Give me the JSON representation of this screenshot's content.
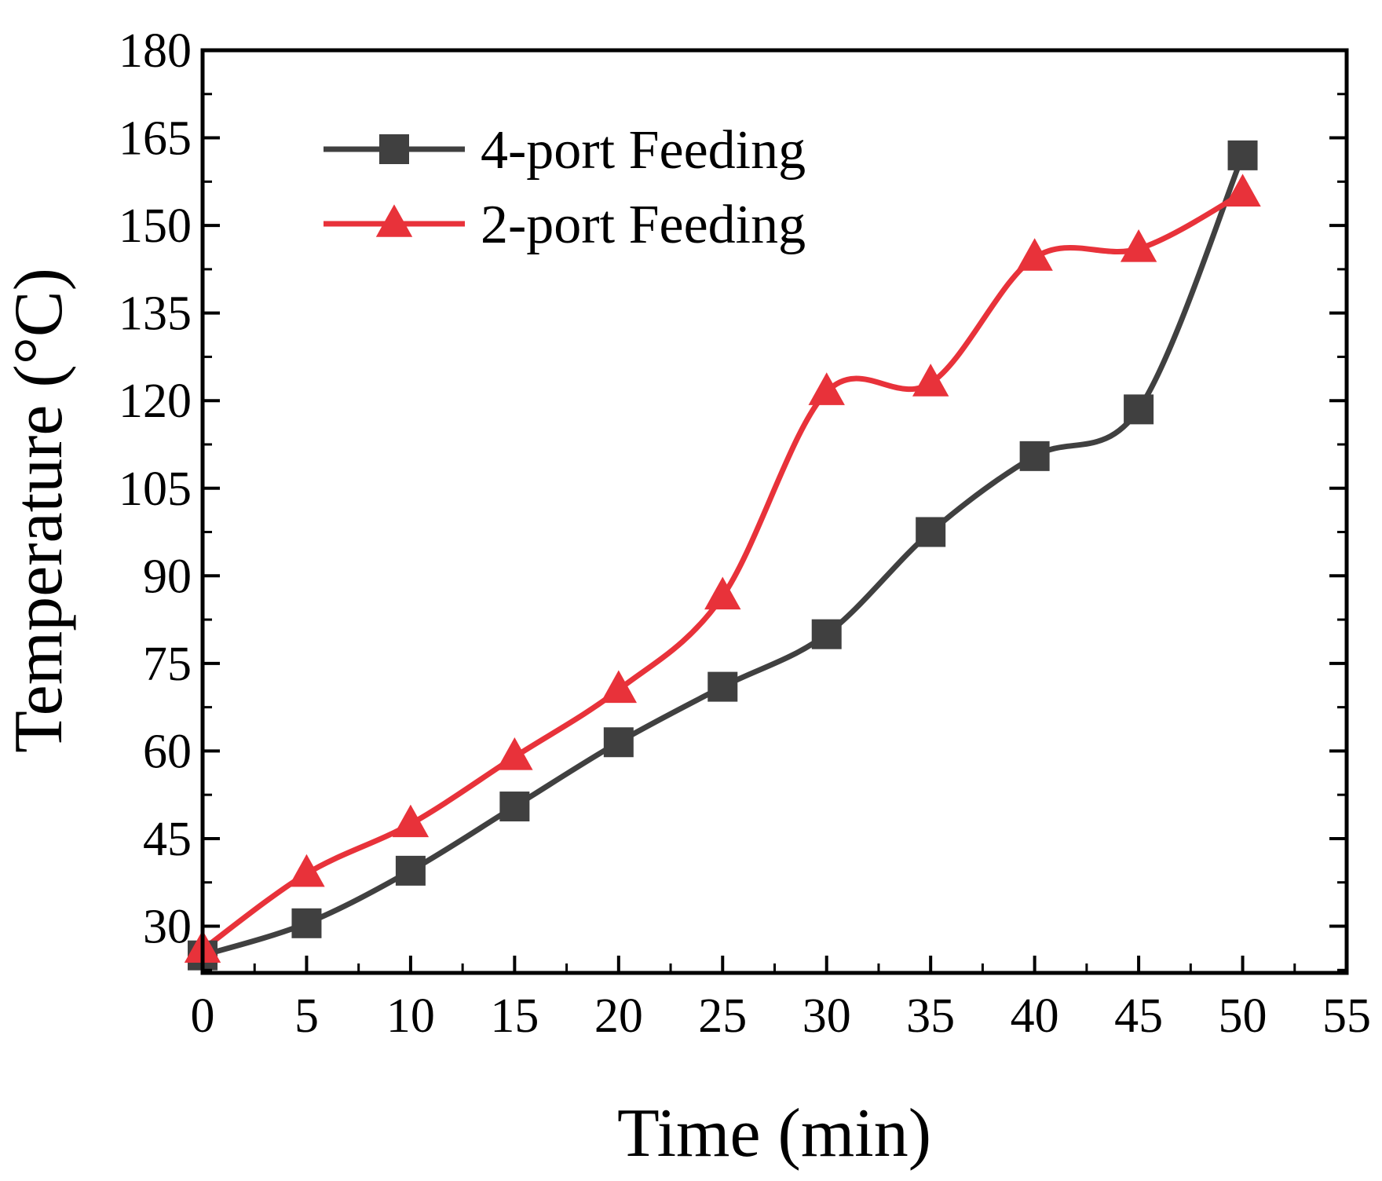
{
  "chart_data": {
    "type": "line",
    "title": "",
    "xlabel": "Time (min)",
    "ylabel": "Temperature (°C)",
    "xlim": [
      0,
      55
    ],
    "ylim": [
      22,
      180
    ],
    "xticks": [
      0,
      5,
      10,
      15,
      20,
      25,
      30,
      35,
      40,
      45,
      50,
      55
    ],
    "yticks": [
      30,
      45,
      60,
      75,
      90,
      105,
      120,
      135,
      150,
      165,
      180
    ],
    "grid": false,
    "legend_position": "top-left",
    "smooth": true,
    "x": [
      0,
      5,
      10,
      15,
      20,
      25,
      30,
      35,
      40,
      45,
      50
    ],
    "series": [
      {
        "name": "4-port Feeding",
        "marker": "square",
        "color": "#404040",
        "values": [
          25,
          30.5,
          39.5,
          50.5,
          61.5,
          71,
          80,
          97.5,
          110.5,
          118.5,
          162
        ]
      },
      {
        "name": "2-port Feeding",
        "marker": "triangle",
        "color": "#e8323a",
        "values": [
          26,
          39,
          47.5,
          59,
          70.5,
          86.5,
          121.5,
          123,
          144.5,
          146,
          155.5
        ]
      }
    ]
  }
}
